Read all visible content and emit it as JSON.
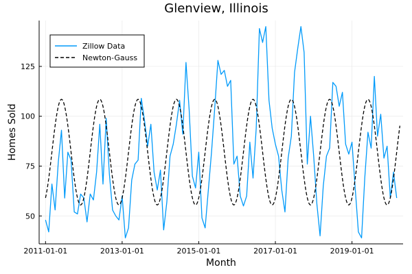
{
  "chart_data": {
    "type": "line",
    "title": "Glenview, Illinois",
    "xlabel": "Month",
    "ylabel": "Homes Sold",
    "x_range": [
      "2010-11-01",
      "2020-05-01"
    ],
    "ylim": [
      36,
      148
    ],
    "x_ticks": [
      "2011-01-01",
      "2013-01-01",
      "2015-01-01",
      "2017-01-01",
      "2019-01-01"
    ],
    "y_ticks": [
      50,
      75,
      100,
      125
    ],
    "grid": true,
    "legend_position": "top-left",
    "series": [
      {
        "name": "Zillow Data",
        "color": "#009AFA",
        "style": "solid",
        "x_start": "2011-01-01",
        "step": "month",
        "values": [
          48,
          42,
          66,
          53,
          77,
          93,
          59,
          82,
          78,
          52,
          51,
          61,
          59,
          47,
          61,
          58,
          72,
          96,
          66,
          99,
          71,
          53,
          50,
          48,
          60,
          39,
          44,
          68,
          76,
          78,
          109,
          98,
          85,
          96,
          72,
          63,
          73,
          43,
          57,
          80,
          86,
          96,
          108,
          91,
          127,
          103,
          70,
          64,
          82,
          49,
          44,
          63,
          82,
          104,
          128,
          121,
          123,
          115,
          118,
          76,
          80,
          60,
          55,
          60,
          87,
          69,
          94,
          144,
          137,
          145,
          108,
          94,
          86,
          80,
          63,
          52,
          79,
          90,
          122,
          134,
          145,
          132,
          76,
          100,
          80,
          56,
          40,
          65,
          80,
          84,
          117,
          115,
          105,
          112,
          86,
          81,
          87,
          64,
          42,
          39,
          69,
          92,
          84,
          120,
          90,
          101,
          79,
          85,
          59,
          72,
          59
        ]
      },
      {
        "name": "Newton-Gauss",
        "color": "#000000",
        "style": "dashed",
        "model": "sinusoid",
        "mean": 82,
        "amplitude": 26.5,
        "period_months": 12,
        "peak_month": 6,
        "x_start": "2011-01-01",
        "x_end": "2020-04-01"
      }
    ]
  }
}
